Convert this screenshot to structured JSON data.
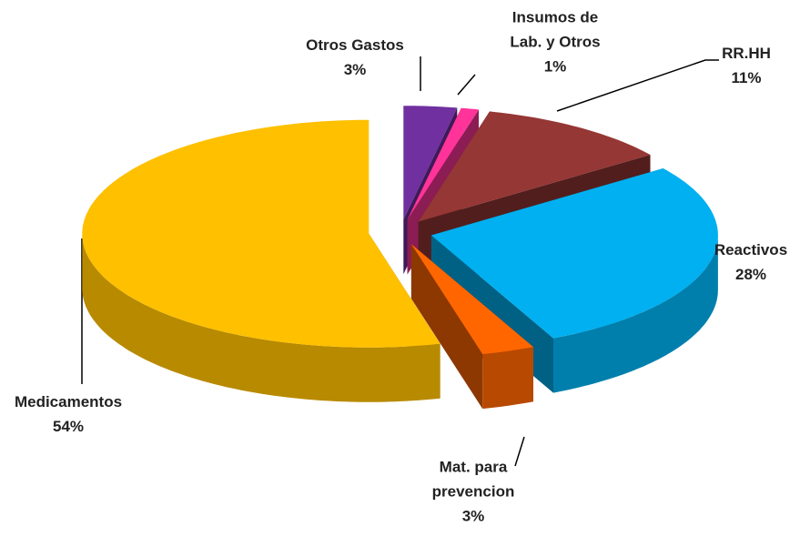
{
  "chart_data": {
    "type": "pie",
    "categories": [
      "Otros Gastos",
      "Insumos de Lab. y Otros",
      "RR.HH",
      "Reactivos",
      "Mat. para prevencion",
      "Medicamentos"
    ],
    "values": [
      3,
      1,
      11,
      28,
      3,
      54
    ],
    "value_labels": [
      "3%",
      "1%",
      "11%",
      "28%",
      "3%",
      "54%"
    ],
    "colors": [
      "#7030a0",
      "#ff3399",
      "#953735",
      "#00b0f0",
      "#ff6600",
      "#ffc000"
    ],
    "explode": true
  }
}
